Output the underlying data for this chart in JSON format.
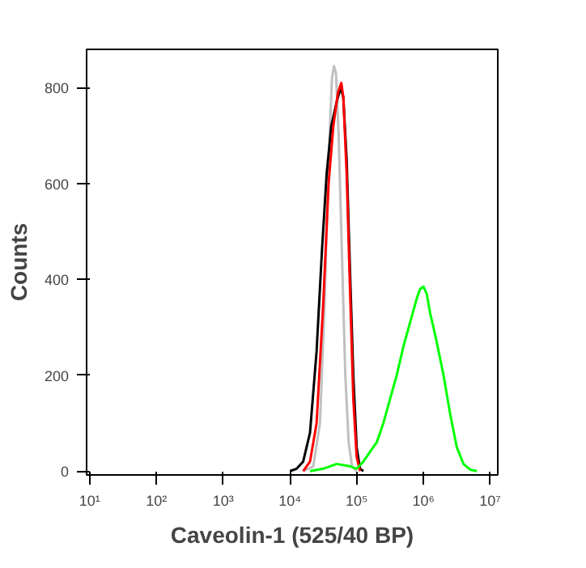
{
  "chart_data": {
    "type": "line",
    "xlabel": "Caveolin-1 (525/40 BP)",
    "ylabel": "Counts",
    "log": "x",
    "grid": false,
    "xlim": [
      9,
      13000000
    ],
    "ylim": [
      -8,
      880
    ],
    "xticks": [
      {
        "value": 10,
        "label": "10¹"
      },
      {
        "value": 100,
        "label": "10²"
      },
      {
        "value": 1000,
        "label": "10³"
      },
      {
        "value": 10000,
        "label": "10⁴"
      },
      {
        "value": 100000,
        "label": "10⁵"
      },
      {
        "value": 1000000,
        "label": "10⁶"
      },
      {
        "value": 10000000,
        "label": "10⁷"
      }
    ],
    "yticks": [
      0,
      200,
      400,
      600,
      800
    ],
    "series": [
      {
        "color": "#c0c0c0",
        "x": [
          15800,
          22400,
          28200,
          33100,
          38000,
          42700,
          45700,
          49000,
          53700,
          60300,
          67600,
          75900,
          85100,
          100000
        ],
        "values": [
          0,
          10,
          100,
          350,
          650,
          820,
          845,
          830,
          700,
          450,
          200,
          60,
          10,
          0
        ]
      },
      {
        "color": "#000000",
        "x": [
          10000,
          12600,
          15800,
          20000,
          25100,
          30200,
          35500,
          41700,
          50100,
          57500,
          63100,
          70800,
          79400,
          89100,
          100000,
          112000,
          126000
        ],
        "values": [
          0,
          5,
          20,
          80,
          250,
          460,
          620,
          720,
          770,
          800,
          780,
          650,
          420,
          200,
          50,
          5,
          0
        ]
      },
      {
        "color": "#ff0000",
        "x": [
          15800,
          20000,
          25100,
          31600,
          38000,
          44700,
          52500,
          58900,
          63100,
          70800,
          79400,
          89100,
          100000,
          112000
        ],
        "values": [
          0,
          20,
          100,
          350,
          600,
          720,
          790,
          810,
          780,
          620,
          380,
          150,
          30,
          0
        ]
      },
      {
        "color": "#00ff00",
        "x": [
          20000,
          31600,
          50100,
          79400,
          100000,
          126000,
          158000,
          200000,
          251000,
          316000,
          398000,
          501000,
          631000,
          794000,
          891000,
          1000000,
          1120000,
          1260000,
          1580000,
          2000000,
          2510000,
          3160000,
          3980000,
          5010000,
          6310000
        ],
        "values": [
          0,
          5,
          15,
          10,
          5,
          20,
          40,
          60,
          100,
          150,
          200,
          260,
          310,
          360,
          380,
          385,
          370,
          330,
          270,
          200,
          120,
          50,
          15,
          3,
          0
        ]
      }
    ]
  }
}
